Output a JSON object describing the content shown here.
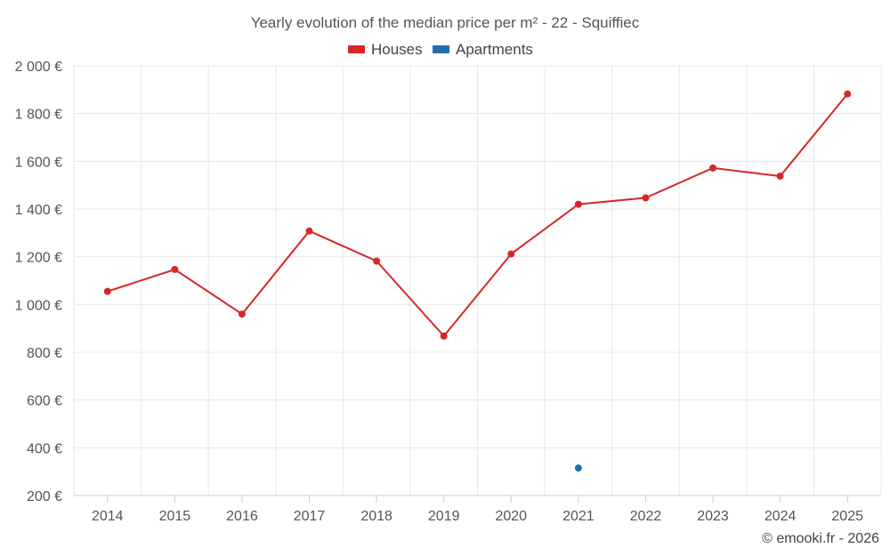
{
  "chart_data": {
    "type": "line",
    "title": "Yearly evolution of the median price per m² - 22 - Squiffiec",
    "categories": [
      "2014",
      "2015",
      "2016",
      "2017",
      "2018",
      "2019",
      "2020",
      "2021",
      "2022",
      "2023",
      "2024",
      "2025"
    ],
    "series": [
      {
        "name": "Houses",
        "color": "#d62728",
        "values": [
          1055,
          1147,
          960,
          1308,
          1182,
          868,
          1212,
          1420,
          1447,
          1572,
          1538,
          1882
        ]
      },
      {
        "name": "Apartments",
        "color": "#1f6fa8",
        "values": [
          null,
          null,
          null,
          null,
          null,
          null,
          null,
          315,
          null,
          null,
          null,
          null
        ]
      }
    ],
    "yaxis": {
      "min": 200,
      "max": 2000,
      "ticks": [
        200,
        400,
        600,
        800,
        1000,
        1200,
        1400,
        1600,
        1800,
        2000
      ],
      "tick_labels": [
        "200 €",
        "400 €",
        "600 €",
        "800 €",
        "1 000 €",
        "1 200 €",
        "1 400 €",
        "1 600 €",
        "1 800 €",
        "2 000 €"
      ]
    },
    "grid": true,
    "legend_position": "top-center",
    "xlabel": "",
    "ylabel": ""
  },
  "credit": "© emooki.fr - 2026"
}
